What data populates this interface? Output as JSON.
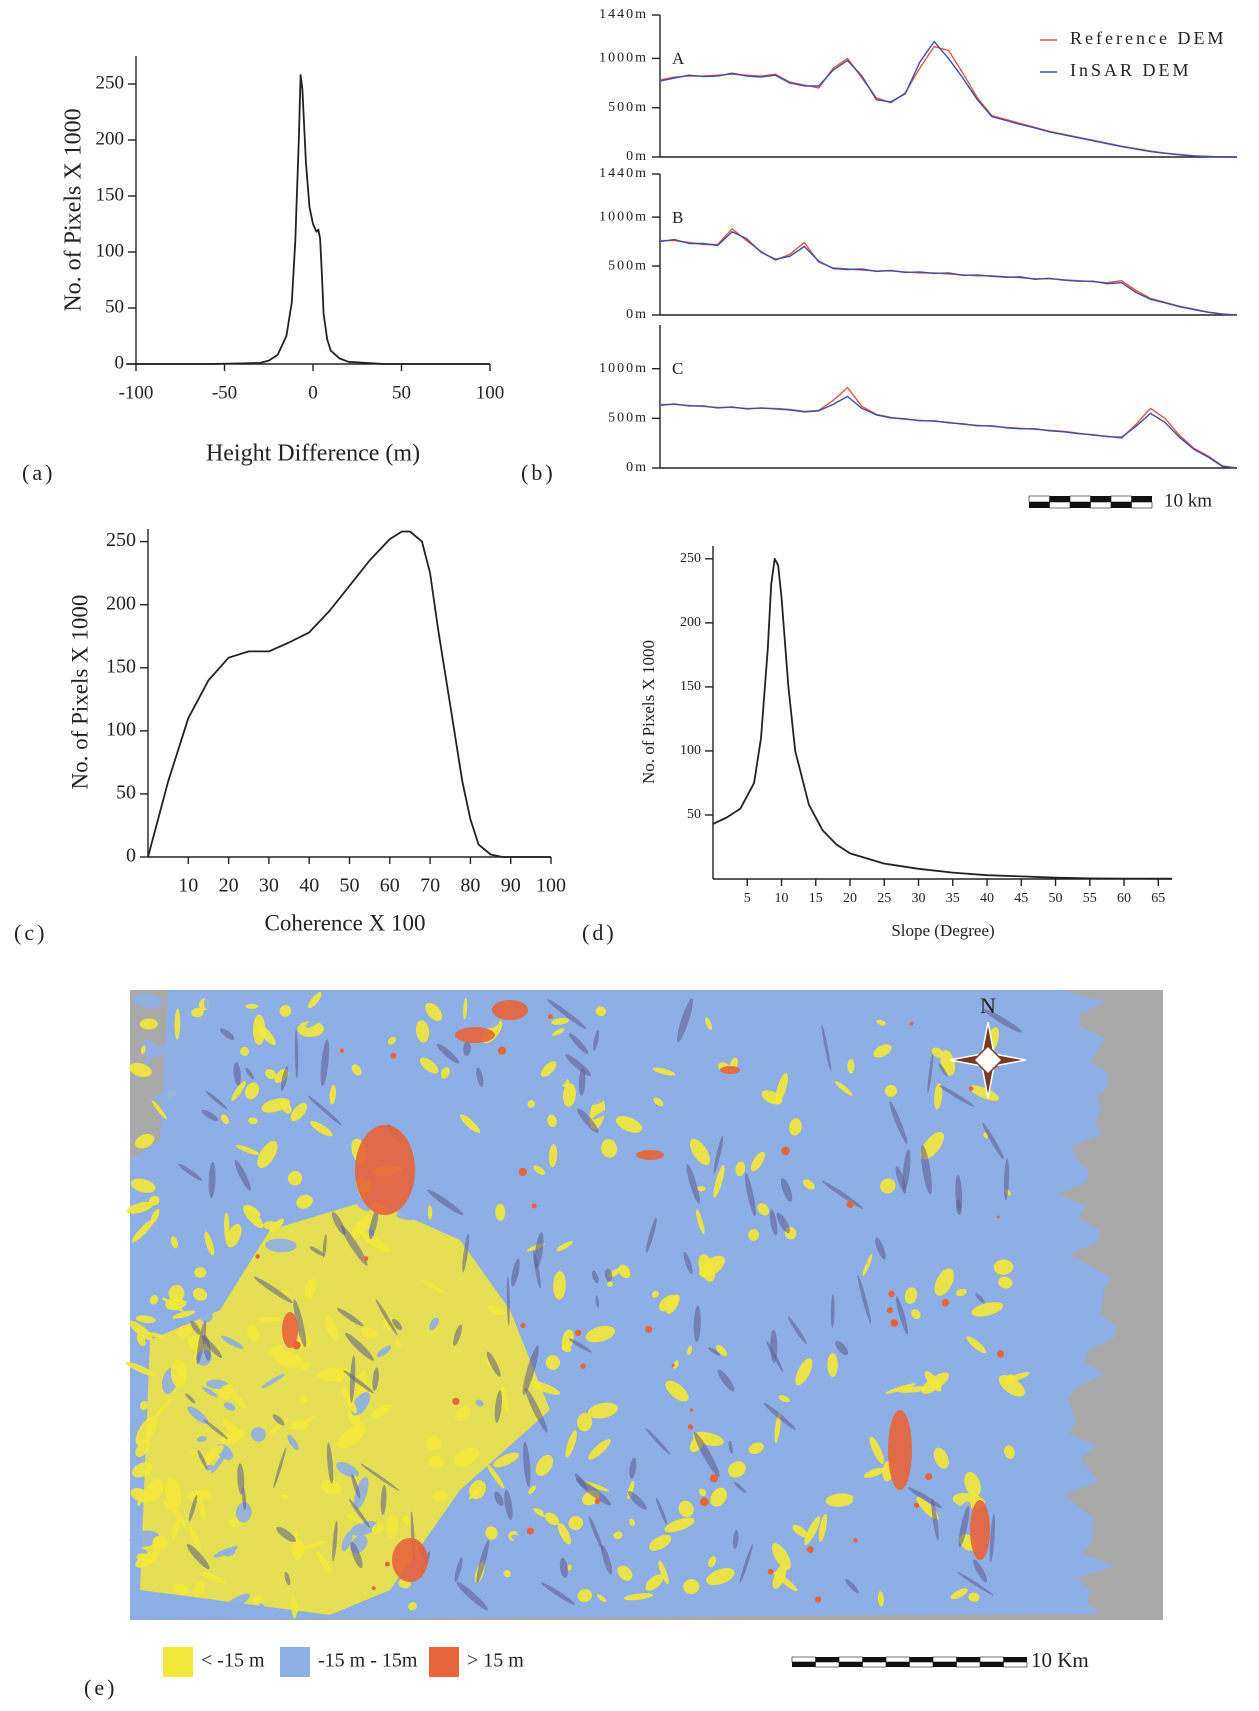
{
  "chart_data": [
    {
      "type": "line",
      "panel": "(a)",
      "x_label": "Height Difference (m)",
      "y_label": "No. of Pixels X 1000",
      "x": [
        -100,
        -60,
        -40,
        -30,
        -25,
        -20,
        -15,
        -12,
        -10,
        -8,
        -7,
        -6,
        -4,
        -2,
        0,
        2,
        3,
        4,
        5,
        6,
        8,
        10,
        15,
        20,
        30,
        40,
        60,
        100
      ],
      "values": [
        0,
        0,
        0.5,
        1,
        3,
        8,
        25,
        55,
        110,
        200,
        258,
        245,
        180,
        140,
        125,
        118,
        120,
        112,
        80,
        45,
        22,
        12,
        5,
        2,
        1,
        0,
        0,
        0
      ],
      "color": "#222222",
      "xlim": [
        -100,
        100
      ],
      "ylim": [
        0,
        275
      ],
      "xticks": [
        -100,
        -50,
        0,
        50,
        100
      ],
      "yticks": [
        0,
        50,
        100,
        150,
        200,
        250
      ]
    },
    {
      "type": "line",
      "label": "A",
      "x": [
        0,
        1,
        2,
        3,
        4,
        5,
        6,
        7,
        8,
        9,
        10,
        11,
        12,
        13,
        14,
        15,
        16,
        17,
        18,
        19,
        20,
        21,
        22,
        23,
        24,
        25,
        26,
        27,
        28,
        29,
        30,
        31,
        32,
        33,
        34,
        35,
        36,
        37,
        38,
        39,
        40
      ],
      "series": [
        {
          "name": "Reference DEM",
          "color": "#e8553a",
          "values": [
            780,
            810,
            820,
            820,
            830,
            840,
            830,
            820,
            840,
            760,
            730,
            700,
            900,
            1000,
            800,
            600,
            550,
            650,
            900,
            1120,
            1080,
            850,
            600,
            420,
            380,
            340,
            300,
            260,
            230,
            200,
            170,
            140,
            110,
            85,
            60,
            40,
            25,
            12,
            5,
            0,
            0
          ]
        },
        {
          "name": "InSAR DEM",
          "color": "#3a4fa8",
          "values": [
            770,
            800,
            830,
            815,
            820,
            850,
            820,
            810,
            830,
            750,
            720,
            720,
            880,
            980,
            820,
            580,
            560,
            640,
            960,
            1170,
            1000,
            800,
            580,
            410,
            370,
            330,
            295,
            255,
            225,
            195,
            165,
            135,
            105,
            80,
            55,
            38,
            22,
            10,
            4,
            0,
            0
          ]
        }
      ],
      "xlim": [
        0,
        40
      ],
      "ylim": [
        0,
        1440
      ],
      "yticks": [
        {
          "value": 0,
          "label": "0m"
        },
        {
          "value": 500,
          "label": "500m"
        },
        {
          "value": 1000,
          "label": "1000m"
        },
        {
          "value": 1440,
          "label": "1440m"
        }
      ]
    },
    {
      "type": "line",
      "label": "B",
      "x": [
        0,
        1,
        2,
        3,
        4,
        5,
        6,
        7,
        8,
        9,
        10,
        11,
        12,
        13,
        14,
        15,
        16,
        17,
        18,
        19,
        20,
        21,
        22,
        23,
        24,
        25,
        26,
        27,
        28,
        29,
        30,
        31,
        32,
        33,
        34,
        35,
        36,
        37,
        38,
        39,
        40
      ],
      "series": [
        {
          "color": "#e8553a",
          "values": [
            760,
            760,
            740,
            720,
            720,
            880,
            760,
            650,
            560,
            620,
            740,
            540,
            480,
            470,
            460,
            450,
            450,
            440,
            430,
            430,
            420,
            410,
            400,
            400,
            390,
            380,
            370,
            370,
            360,
            350,
            340,
            330,
            350,
            250,
            170,
            130,
            90,
            60,
            30,
            10,
            0
          ]
        },
        {
          "color": "#3a4fa8",
          "values": [
            750,
            770,
            730,
            730,
            710,
            850,
            780,
            640,
            570,
            600,
            700,
            550,
            475,
            465,
            470,
            445,
            455,
            435,
            440,
            425,
            430,
            405,
            410,
            395,
            385,
            390,
            365,
            375,
            355,
            345,
            345,
            320,
            330,
            230,
            160,
            125,
            85,
            55,
            28,
            8,
            0
          ]
        }
      ],
      "xlim": [
        0,
        40
      ],
      "ylim": [
        0,
        1440
      ],
      "yticks": [
        {
          "value": 0,
          "label": "0m"
        },
        {
          "value": 500,
          "label": "500m"
        },
        {
          "value": 1000,
          "label": "1000m"
        },
        {
          "value": 1440,
          "label": "1440m"
        }
      ]
    },
    {
      "type": "line",
      "label": "C",
      "panel": "(b)",
      "scale_label": "10 km",
      "x": [
        0,
        1,
        2,
        3,
        4,
        5,
        6,
        7,
        8,
        9,
        10,
        11,
        12,
        13,
        14,
        15,
        16,
        17,
        18,
        19,
        20,
        21,
        22,
        23,
        24,
        25,
        26,
        27,
        28,
        29,
        30,
        31,
        32,
        33,
        34,
        35,
        36,
        37,
        38,
        39,
        40
      ],
      "series": [
        {
          "color": "#e8553a",
          "values": [
            640,
            640,
            630,
            620,
            610,
            610,
            600,
            600,
            600,
            590,
            570,
            580,
            680,
            810,
            620,
            540,
            510,
            490,
            480,
            470,
            460,
            440,
            430,
            420,
            410,
            400,
            390,
            380,
            370,
            350,
            330,
            320,
            300,
            440,
            600,
            500,
            330,
            200,
            120,
            20,
            0
          ]
        },
        {
          "color": "#3a4fa8",
          "values": [
            630,
            645,
            625,
            625,
            605,
            615,
            595,
            605,
            595,
            585,
            565,
            575,
            640,
            720,
            600,
            535,
            505,
            495,
            475,
            475,
            455,
            445,
            425,
            425,
            405,
            395,
            395,
            375,
            365,
            345,
            335,
            315,
            310,
            420,
            550,
            460,
            310,
            190,
            110,
            15,
            0
          ]
        }
      ],
      "xlim": [
        0,
        40
      ],
      "ylim": [
        0,
        1440
      ],
      "yticks": [
        {
          "value": 0,
          "label": "0m"
        },
        {
          "value": 500,
          "label": "500m"
        },
        {
          "value": 1000,
          "label": "1000m"
        }
      ]
    },
    {
      "type": "line",
      "panel": "(c)",
      "x_label": "Coherence X 100",
      "y_label": "No. of Pixels X 1000",
      "x": [
        0,
        5,
        10,
        15,
        20,
        25,
        30,
        35,
        40,
        45,
        50,
        55,
        60,
        63,
        65,
        68,
        70,
        72,
        75,
        78,
        80,
        82,
        85,
        88,
        90,
        95,
        100
      ],
      "values": [
        0,
        60,
        110,
        140,
        158,
        163,
        163,
        170,
        178,
        195,
        215,
        235,
        252,
        258,
        258,
        250,
        225,
        180,
        120,
        60,
        30,
        10,
        2,
        0,
        0,
        0,
        0
      ],
      "color": "#222222",
      "xlim": [
        0,
        100
      ],
      "ylim": [
        0,
        260
      ],
      "xticks": [
        10,
        20,
        30,
        40,
        50,
        60,
        70,
        80,
        90,
        100
      ],
      "yticks": [
        0,
        50,
        100,
        150,
        200,
        250
      ]
    },
    {
      "type": "line",
      "panel": "(d)",
      "x_label": "Slope (Degree)",
      "y_label": "No. of Pixels X 1000",
      "x": [
        0,
        2,
        4,
        6,
        7,
        8,
        8.5,
        9,
        9.5,
        10,
        11,
        12,
        14,
        16,
        18,
        20,
        25,
        30,
        35,
        40,
        45,
        50,
        55,
        60,
        65,
        67
      ],
      "values": [
        43,
        48,
        55,
        75,
        110,
        180,
        230,
        250,
        245,
        220,
        150,
        100,
        58,
        38,
        27,
        20,
        12,
        8,
        5,
        3,
        2,
        1,
        0.5,
        0.3,
        0.2,
        0.2
      ],
      "color": "#222222",
      "xlim": [
        0,
        67
      ],
      "ylim": [
        0,
        260
      ],
      "xticks": [
        5,
        10,
        15,
        20,
        25,
        30,
        35,
        40,
        45,
        50,
        55,
        60,
        65
      ],
      "yticks": [
        50,
        100,
        150,
        200,
        250
      ]
    },
    {
      "type": "map",
      "panel": "(e)",
      "north_label": "N",
      "scale_label": "10 Km",
      "legend": [
        {
          "label": "< -15 m",
          "color": "#f3e83a"
        },
        {
          "label": "-15 m - 15m",
          "color": "#8eaee6"
        },
        {
          "label": "> 15 m",
          "color": "#e8643a"
        }
      ]
    }
  ]
}
